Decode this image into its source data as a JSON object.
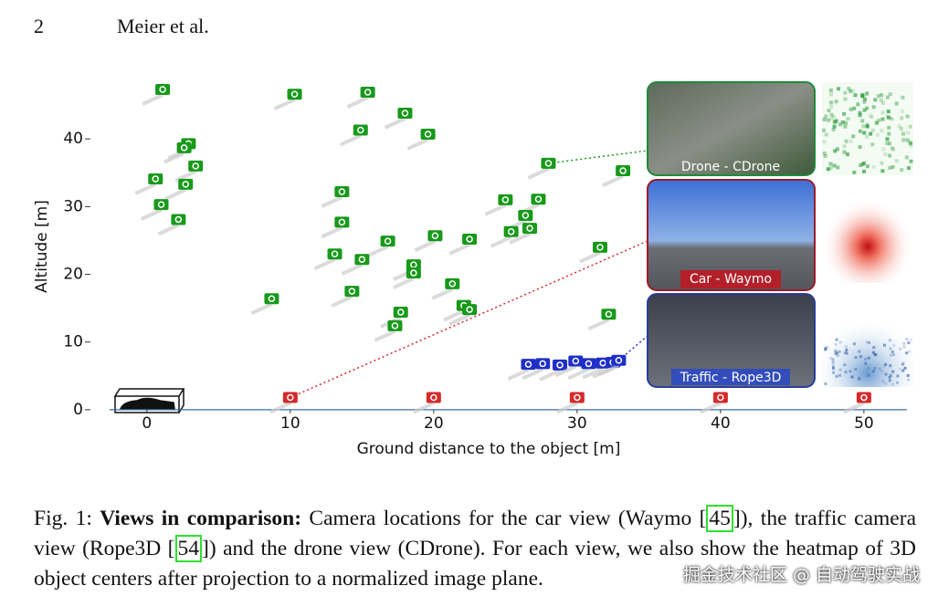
{
  "header": {
    "page": "2",
    "authors": "Meier et al."
  },
  "chart_data": {
    "type": "scatter",
    "x_label": "Ground distance to the object [m]",
    "y_label": "Altitude [m]",
    "xlim": [
      -2.6,
      53
    ],
    "ylim": [
      -1.5,
      50
    ],
    "xticks": [
      0,
      10,
      20,
      30,
      40,
      50
    ],
    "yticks": [
      0,
      10,
      20,
      30,
      40
    ],
    "series": [
      {
        "name": "Drone - CDrone",
        "color": "#17991a",
        "x": [
          1.1,
          10.3,
          15.4,
          18.0,
          14.9,
          19.6,
          2.9,
          2.6,
          3.4,
          0.6,
          2.7,
          1.0,
          2.2,
          28.0,
          33.2,
          13.6,
          25.0,
          27.3,
          26.4,
          13.6,
          25.4,
          26.7,
          16.8,
          20.1,
          22.5,
          31.6,
          13.1,
          15.0,
          18.6,
          18.6,
          8.7,
          14.3,
          21.3,
          17.7,
          22.1,
          22.5,
          17.3,
          32.2
        ],
        "values": [
          47.3,
          46.6,
          46.9,
          43.8,
          41.3,
          40.7,
          39.3,
          38.7,
          36.0,
          34.1,
          33.3,
          30.3,
          28.1,
          36.4,
          35.3,
          32.2,
          31.0,
          31.1,
          28.7,
          27.7,
          26.3,
          26.8,
          24.9,
          25.7,
          25.2,
          24.0,
          23.0,
          22.2,
          21.4,
          20.2,
          16.4,
          17.5,
          18.6,
          14.4,
          15.4,
          14.8,
          12.4,
          14.1
        ]
      },
      {
        "name": "Car - Waymo",
        "color": "#d42a2a",
        "x": [
          10,
          20,
          30,
          40,
          50
        ],
        "values": [
          1.8,
          1.8,
          1.8,
          1.8,
          1.8
        ]
      },
      {
        "name": "Traffic  - Rope3D",
        "color": "#1f2fc8",
        "x": [
          26.6,
          27.6,
          28.8,
          29.9,
          30.8,
          31.8,
          32.5,
          32.9
        ],
        "values": [
          6.7,
          6.8,
          6.6,
          7.2,
          6.8,
          6.9,
          7.0,
          7.3
        ]
      }
    ]
  },
  "caption": {
    "label": "Fig. 1:",
    "bold": "Views in comparison:",
    "text1": "Camera locations for the car view (Waymo [",
    "ref1": "45",
    "text2": "]), the traffic camera view (Rope3D [",
    "ref2": "54",
    "text3": "]) and the drone view (CDrone). For each view, we also show the heatmap of 3D object centers after projection to a normalized image plane."
  },
  "watermark": "掘金技术社区 @ 自动驾驶实战"
}
